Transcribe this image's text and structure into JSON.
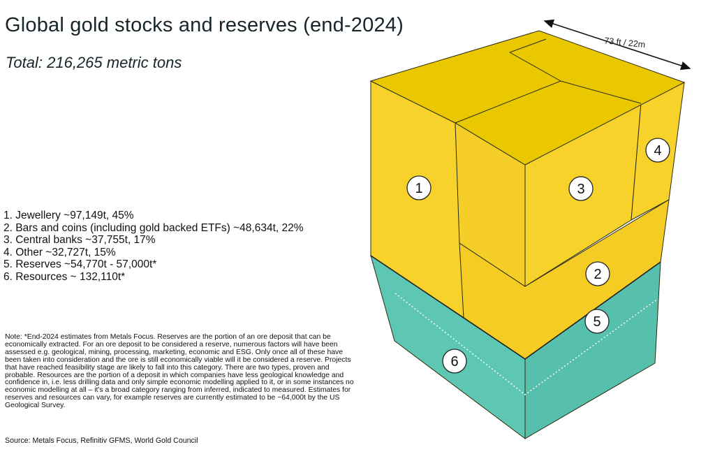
{
  "title": "Global gold stocks and reserves (end-2024)",
  "subtitle": "Total:  216,265 metric tons",
  "dimension_label": "73 ft / 22m",
  "legend": [
    {
      "marker": "1",
      "text": "1. Jewellery ~97,149t, 45%"
    },
    {
      "marker": "2",
      "text": "2. Bars and coins (including gold backed ETFs) ~48,634t, 22%"
    },
    {
      "marker": "3",
      "text": "3. Central banks ~37,755t, 17%"
    },
    {
      "marker": "4",
      "text": "4. Other ~32,727t, 15%"
    },
    {
      "marker": "5",
      "text": "5. Reserves ~54,770t - 57,000t*"
    },
    {
      "marker": "6",
      "text": "6. Resources ~ 132,110t*"
    }
  ],
  "note": "Note: *End-2024 estimates from Metals Focus. Reserves are the portion of an ore deposit that can be economically extracted. For an ore deposit to be considered a reserve, numerous factors will have been assessed e.g. geological, mining, processing, marketing, economic and ESG. Only once all of these have been taken into consideration and the ore is still economically viable will it be considered a reserve. Projects that have reached feasibility stage are likely to fall into this category. There are two types, proven and probable. Resources are the portion of a deposit in which companies have less geological knowledge and confidence in, i.e. less drilling data and only simple economic modelling applied to it, or in some instances no economic modelling at all – it's a broad category ranging from inferred, indicated to measured. Estimates for reserves and resources can vary, for example reserves are currently estimated to be ~64,000t by the US Geological Survey.",
  "source": "Source: Metals Focus, Refinitiv GFMS, World Gold Council",
  "colors": {
    "gold_light": "#f7d22a",
    "gold_top": "#e9c800",
    "teal": "#5ec7b3",
    "edge": "#2a2a10"
  }
}
